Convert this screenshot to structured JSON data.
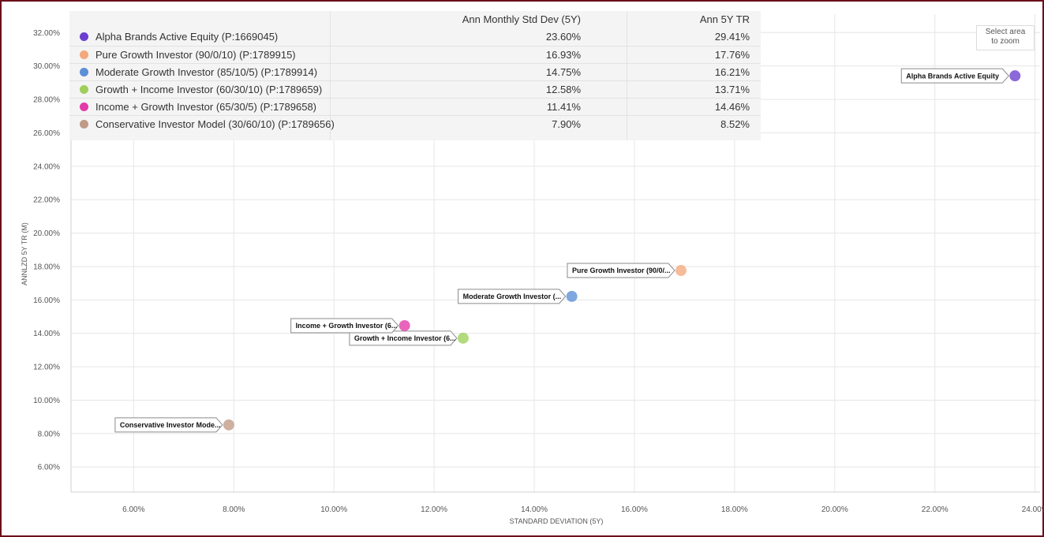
{
  "chart_data": {
    "type": "scatter",
    "xlabel": "STANDARD DEVIATION (5Y)",
    "ylabel": "ANNLZD 5Y TR (M)",
    "xlim": [
      4.75,
      24.1
    ],
    "ylim": [
      4.5,
      33.1
    ],
    "x_ticks": [
      6,
      8,
      10,
      12,
      14,
      16,
      18,
      20,
      22,
      24
    ],
    "y_ticks": [
      6,
      8,
      10,
      12,
      14,
      16,
      18,
      20,
      22,
      24,
      26,
      28,
      30,
      32
    ],
    "x_tick_labels": [
      "6.00%",
      "8.00%",
      "10.00%",
      "12.00%",
      "14.00%",
      "16.00%",
      "18.00%",
      "20.00%",
      "22.00%",
      "24.00%"
    ],
    "y_tick_labels": [
      "6.00%",
      "8.00%",
      "10.00%",
      "12.00%",
      "14.00%",
      "16.00%",
      "18.00%",
      "20.00%",
      "22.00%",
      "24.00%",
      "26.00%",
      "28.00%",
      "30.00%",
      "32.00%"
    ],
    "grid": true,
    "legend_placement": "top-left table",
    "series": [
      {
        "name": "Alpha Brands Active Equity (P:1669045)",
        "callout": "Alpha Brands Active Equity",
        "x": 23.6,
        "y": 29.41,
        "x_label": "23.60%",
        "y_label": "29.41%",
        "color": "#6a3fd0"
      },
      {
        "name": "Pure Growth Investor (90/0/10) (P:1789915)",
        "callout": "Pure Growth Investor (90/0/...",
        "x": 16.93,
        "y": 17.76,
        "x_label": "16.93%",
        "y_label": "17.76%",
        "color": "#f4a87c"
      },
      {
        "name": "Moderate Growth Investor (85/10/5) (P:1789914)",
        "callout": "Moderate Growth Investor (...",
        "x": 14.75,
        "y": 16.21,
        "x_label": "14.75%",
        "y_label": "16.21%",
        "color": "#5b8fd8"
      },
      {
        "name": "Growth + Income Investor (60/30/10) (P:1789659)",
        "callout": "Growth + Income Investor (6...",
        "x": 12.58,
        "y": 13.71,
        "x_label": "12.58%",
        "y_label": "13.71%",
        "color": "#9fcf5a"
      },
      {
        "name": "Income + Growth Investor (65/30/5) (P:1789658)",
        "callout": "Income + Growth Investor (6...",
        "x": 11.41,
        "y": 14.46,
        "x_label": "11.41%",
        "y_label": "14.46%",
        "color": "#e23aa9"
      },
      {
        "name": "Conservative Investor Model (30/60/10) (P:1789656)",
        "callout": "Conservative Investor Mode...",
        "x": 7.9,
        "y": 8.52,
        "x_label": "7.90%",
        "y_label": "8.52%",
        "color": "#c09a86"
      }
    ]
  },
  "legend": {
    "col1_header": "Ann Monthly Std Dev (5Y)",
    "col2_header": "Ann 5Y TR"
  },
  "zoom_hint": {
    "line1": "Select area",
    "line2": "to zoom"
  }
}
